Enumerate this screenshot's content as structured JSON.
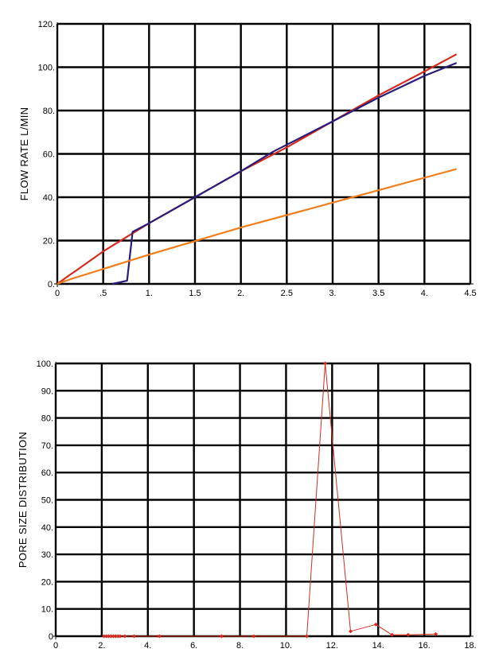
{
  "chart_data": [
    {
      "type": "line",
      "title": "",
      "xlabel": "",
      "ylabel": "FLOW RATE L/MIN",
      "xlim": [
        0,
        4.5
      ],
      "ylim": [
        0,
        120
      ],
      "grid": true,
      "x_ticks": [
        "0",
        ".5",
        "1.",
        "1.5",
        "2.",
        "2.5",
        "3.",
        "3.5",
        "4.",
        "4.5"
      ],
      "y_ticks": [
        "0.",
        "20.",
        "40.",
        "60.",
        "80.",
        "100.",
        "120."
      ],
      "series": [
        {
          "color": "#d62a1e",
          "x": [
            0,
            0.13,
            0.2,
            0.5,
            1.0,
            1.5,
            2.0,
            2.5,
            3.0,
            3.5,
            4.0,
            4.35
          ],
          "y": [
            0,
            4,
            6,
            15,
            28,
            40,
            52,
            63,
            75,
            87,
            98,
            106
          ]
        },
        {
          "color": "#2a1c7a",
          "x": [
            0.6,
            0.76,
            0.82,
            1.0,
            1.5,
            2.0,
            2.35,
            3.0,
            3.5,
            4.0,
            4.35
          ],
          "y": [
            0,
            1.5,
            24,
            28,
            40,
            52,
            61,
            75,
            86,
            96,
            102
          ]
        },
        {
          "color": "#f07e1d",
          "x": [
            0,
            0.13,
            1.0,
            2.0,
            3.0,
            4.0,
            4.35
          ],
          "y": [
            0,
            2,
            13.5,
            26,
            37.5,
            49,
            53
          ]
        }
      ]
    },
    {
      "type": "line",
      "title": "",
      "xlabel": "",
      "ylabel": "PORE SIZE DISTRIBUTION",
      "xlim": [
        0,
        18
      ],
      "ylim": [
        0,
        100
      ],
      "grid": true,
      "x_ticks": [
        "0",
        "2.",
        "4.",
        "6.",
        "8.",
        "10.",
        "12.",
        "14.",
        "16.",
        "18."
      ],
      "y_ticks": [
        "0",
        "10.",
        "20.",
        "30.",
        "40.",
        "50.",
        "60.",
        "70.",
        "80.",
        "90.",
        "100."
      ],
      "series": [
        {
          "color": "#d62a1e",
          "markers": true,
          "x": [
            2.1,
            2.2,
            2.3,
            2.4,
            2.5,
            2.6,
            2.7,
            2.8,
            3.0,
            3.4,
            4.5,
            7.2,
            8.6,
            10.9,
            11.7,
            12.8,
            13.9,
            14.6,
            15.3,
            16.5
          ],
          "y": [
            0,
            0,
            0,
            0,
            0,
            0,
            0,
            0,
            0,
            0,
            0,
            0,
            0,
            0,
            100,
            1.8,
            4.3,
            0.5,
            0.5,
            0.8
          ]
        }
      ]
    }
  ]
}
